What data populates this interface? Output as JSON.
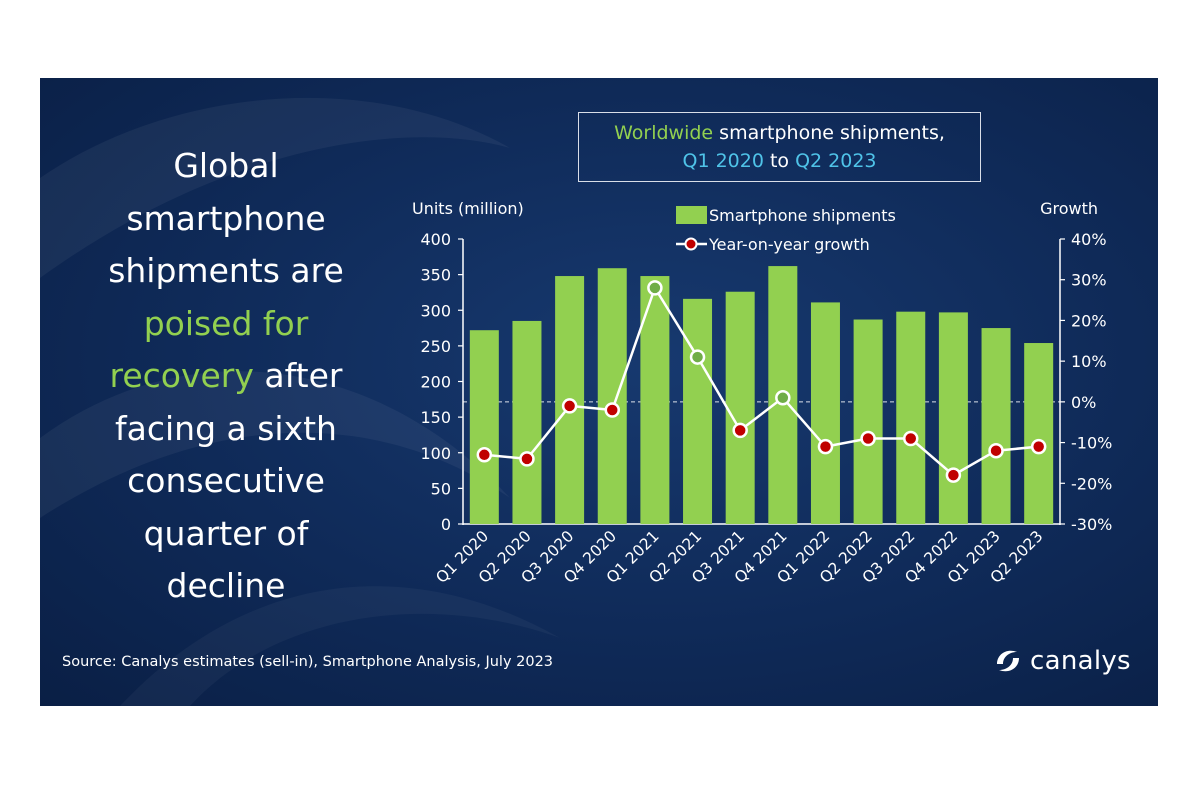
{
  "headline": {
    "line1": "Global",
    "line2": "smartphone",
    "line3": "shipments are",
    "highlight1": "poised for",
    "highlight2": "recovery",
    "line5_rest": " after",
    "line6": "facing a sixth",
    "line7": "consecutive",
    "line8": "quarter of",
    "line9": "decline"
  },
  "title": {
    "part_green": "Worldwide",
    "part_rest": " smartphone shipments,",
    "part_start": "Q1 2020",
    "part_to": " to ",
    "part_end": "Q2 2023"
  },
  "source": "Source:  Canalys estimates (sell-in), Smartphone Analysis, July 2023",
  "logo_text": "canalys",
  "colors": {
    "bar": "#92d050",
    "line": "#ffffff",
    "marker_neg": "#c00000",
    "marker_pos": "#70ad47",
    "background": "#0f2a58"
  },
  "chart_data": {
    "type": "bar",
    "title": "Worldwide smartphone shipments, Q1 2020 to Q2 2023",
    "ylabel_left": "Units (million)",
    "ylabel_right": "Growth",
    "ylim": [
      0,
      400
    ],
    "y_ticks": [
      "0",
      "50",
      "100",
      "150",
      "200",
      "250",
      "300",
      "350",
      "400"
    ],
    "y2lim": [
      -30,
      40
    ],
    "y2_ticks": [
      "-30%",
      "-20%",
      "-10%",
      "0%",
      "10%",
      "20%",
      "30%",
      "40%"
    ],
    "categories": [
      "Q1 2020",
      "Q2 2020",
      "Q3 2020",
      "Q4 2020",
      "Q1 2021",
      "Q2 2021",
      "Q3 2021",
      "Q4 2021",
      "Q1 2022",
      "Q2 2022",
      "Q3 2022",
      "Q4 2022",
      "Q1 2023",
      "Q2 2023"
    ],
    "series": [
      {
        "name": "Smartphone shipments",
        "kind": "bar",
        "axis": "left",
        "values": [
          272,
          285,
          348,
          359,
          348,
          316,
          326,
          362,
          311,
          287,
          298,
          297,
          275,
          254
        ]
      },
      {
        "name": "Year-on-year growth",
        "kind": "line",
        "axis": "right",
        "values": [
          -13,
          -14,
          -1,
          -2,
          28,
          11,
          -7,
          1,
          -11,
          -9,
          -9,
          -18,
          -12,
          -11
        ]
      }
    ],
    "legend": [
      "Smartphone shipments",
      "Year-on-year growth"
    ],
    "legend_position": "top-center",
    "zero_line": "dashed"
  }
}
